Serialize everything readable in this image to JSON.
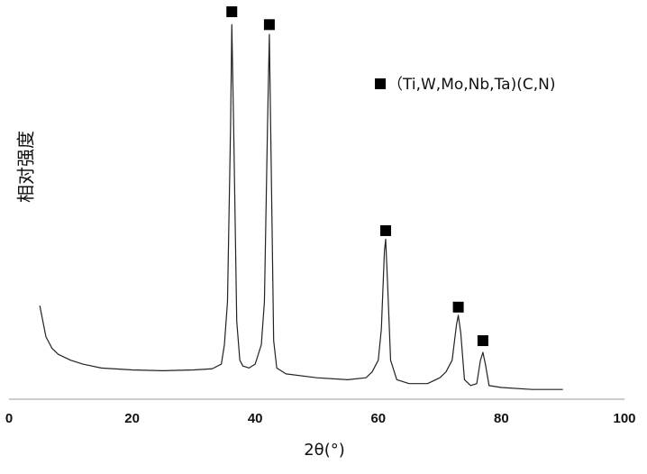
{
  "chart_data": {
    "type": "line",
    "xlabel": "2θ(°)",
    "ylabel": "相对强度",
    "xlim": [
      0,
      100
    ],
    "xticks": [
      0,
      20,
      40,
      60,
      80,
      100
    ],
    "ylim": [
      0,
      100
    ],
    "series": [
      {
        "color": "#222222",
        "x": [
          5,
          6,
          7,
          8,
          10,
          12,
          15,
          20,
          25,
          30,
          33,
          34.5,
          35,
          35.5,
          36,
          36.2,
          36.5,
          37,
          37.5,
          38,
          39,
          40,
          41,
          41.5,
          42,
          42.3,
          42.6,
          43,
          43.5,
          45,
          50,
          55,
          58,
          59,
          60,
          60.5,
          61,
          61.2,
          61.5,
          62,
          63,
          65,
          68,
          70,
          71,
          72,
          72.7,
          73,
          73.4,
          74,
          75,
          76,
          76.6,
          77,
          77.4,
          78,
          80,
          85,
          90
        ],
        "values": [
          24,
          16,
          13,
          11.5,
          10,
          9,
          8,
          7.5,
          7.3,
          7.5,
          7.8,
          9,
          14,
          25,
          70,
          96,
          70,
          20,
          10,
          8.5,
          8,
          9,
          14,
          25,
          70,
          93.5,
          60,
          15,
          8,
          6.5,
          5.5,
          5,
          5.5,
          7,
          10,
          18,
          38,
          41,
          30,
          10,
          5,
          4,
          4,
          5.5,
          7,
          10,
          19,
          21.5,
          17,
          5,
          3.5,
          4,
          10,
          12,
          9,
          3.5,
          3,
          2.5,
          2.5
        ]
      }
    ],
    "markers": {
      "label": "（Ti,W,Mo,Nb,Ta)(C,N)",
      "color": "#000000",
      "x": [
        36.2,
        42.3,
        61.2,
        73,
        77
      ],
      "y": [
        99.3,
        96,
        43.2,
        23.6,
        15
      ]
    }
  }
}
